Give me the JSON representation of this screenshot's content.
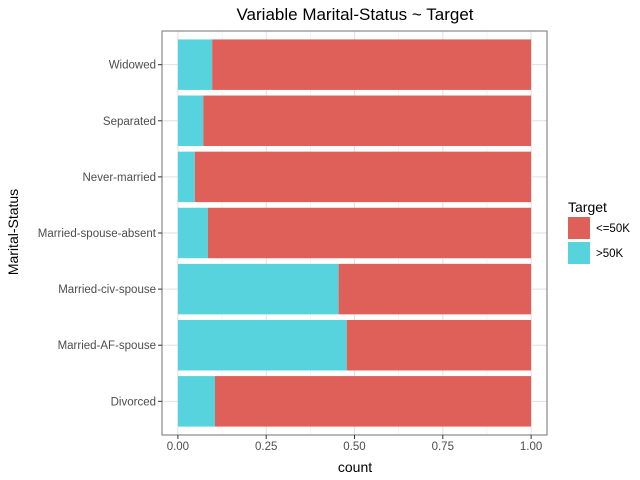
{
  "chart_data": {
    "type": "bar",
    "orientation": "horizontal",
    "stacked": true,
    "normalized": true,
    "title": "Variable Marital-Status ~ Target",
    "xlabel": "count",
    "ylabel": "Marital-Status",
    "xlim": [
      0,
      1
    ],
    "x_ticks": [
      "0.00",
      "0.25",
      "0.50",
      "0.75",
      "1.00"
    ],
    "grid": true,
    "legend_position": "right",
    "legend_title": "Target",
    "categories": [
      "Divorced",
      "Married-AF-spouse",
      "Married-civ-spouse",
      "Married-spouse-absent",
      "Never-married",
      "Separated",
      "Widowed"
    ],
    "series": [
      {
        "name": ">50K",
        "color": "#56d3dc",
        "values": [
          0.105,
          0.478,
          0.455,
          0.085,
          0.048,
          0.072,
          0.097
        ]
      },
      {
        "name": "<=50K",
        "color": "#df6058",
        "values": [
          0.895,
          0.522,
          0.545,
          0.915,
          0.952,
          0.928,
          0.903
        ]
      }
    ],
    "legend_order": [
      "<=50K",
      ">50K"
    ]
  }
}
